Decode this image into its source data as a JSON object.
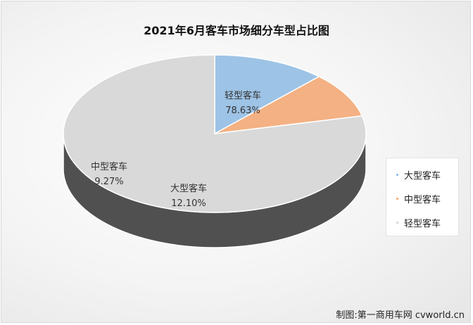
{
  "chart_data": {
    "type": "pie",
    "title": "2021年6月客车市场细分车型占比图",
    "slices": [
      {
        "name": "大型客车",
        "label": "12.10%",
        "value": 12.1,
        "color": "#9dc3e6"
      },
      {
        "name": "中型客车",
        "label": "9.27%",
        "value": 9.27,
        "color": "#f4b183"
      },
      {
        "name": "轻型客车",
        "label": "78.63%",
        "value": 78.63,
        "color": "#d9d9d9"
      }
    ],
    "legend": {
      "position": "right",
      "items": [
        "大型客车",
        "中型客车",
        "轻型客车"
      ]
    }
  },
  "footer": {
    "credit": "制图:第一商用车网 cvworld.cn"
  }
}
